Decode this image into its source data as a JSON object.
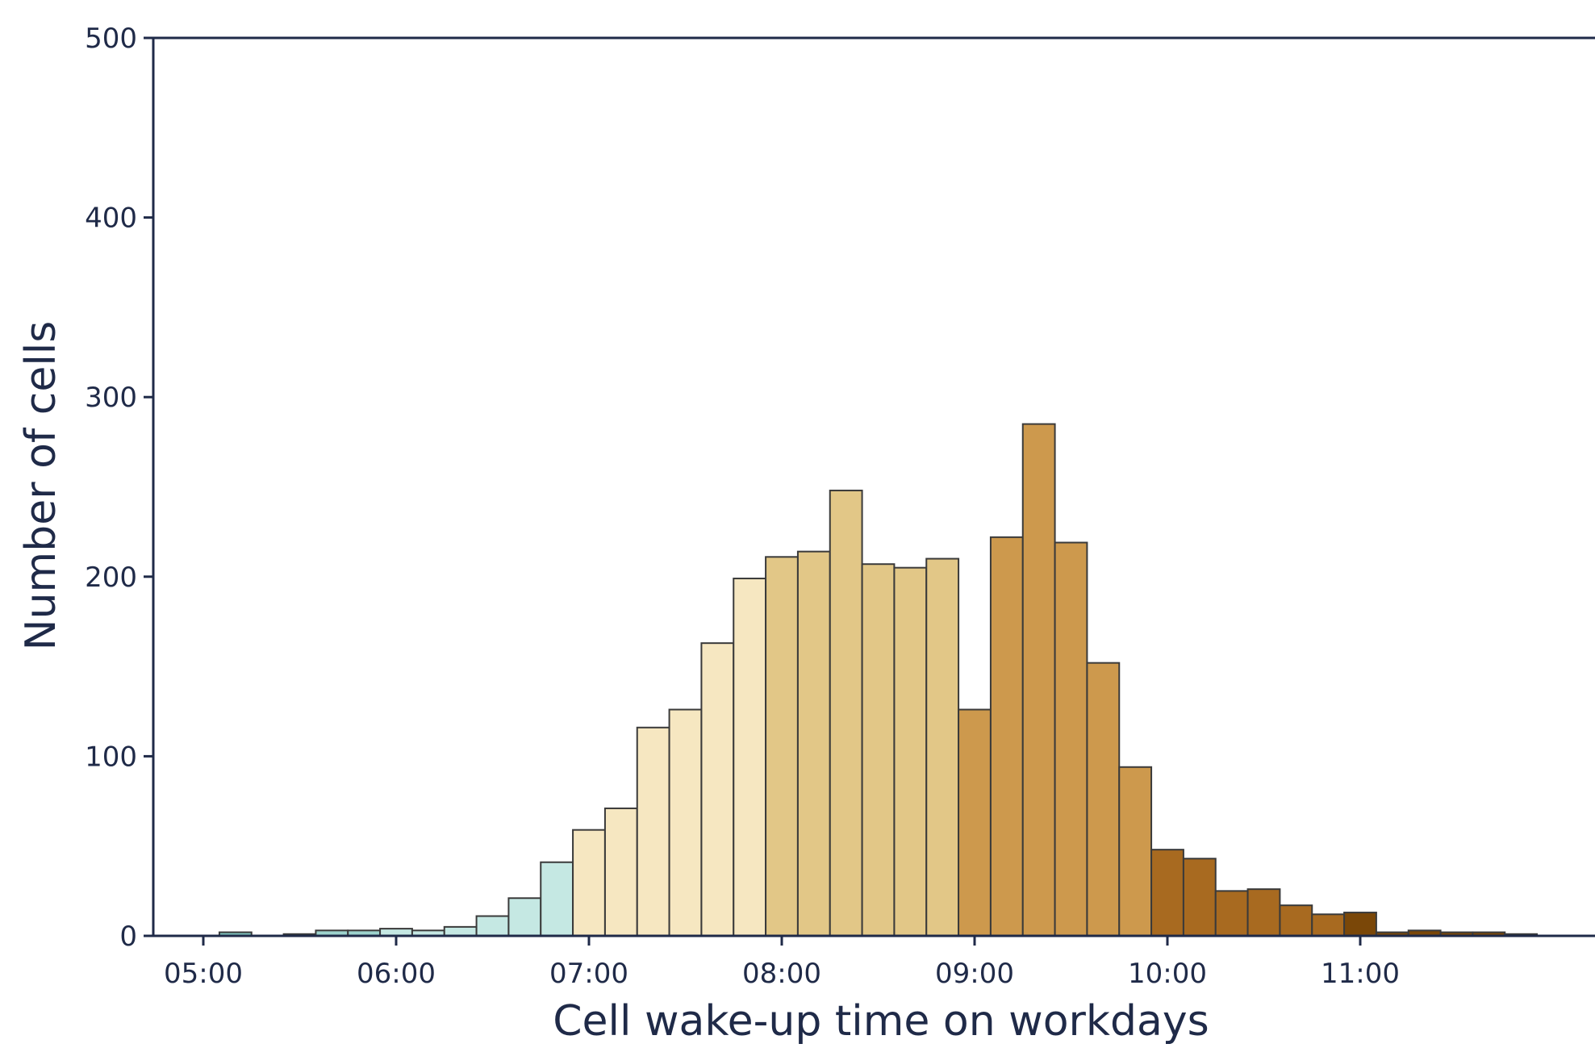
{
  "chart_data": {
    "type": "bar",
    "xlabel": "Cell wake-up time on workdays",
    "ylabel": "Number of cells",
    "ylim": [
      0,
      500
    ],
    "yticks": [
      "0",
      "100",
      "200",
      "300",
      "400",
      "500"
    ],
    "xticks": [
      "05:00",
      "06:00",
      "07:00",
      "08:00",
      "09:00",
      "10:00",
      "11:00"
    ],
    "bin_width_minutes": 10,
    "grid": false,
    "legend": "none",
    "bins": [
      {
        "start": "05:05",
        "value": 2,
        "color": "#7fc4bd"
      },
      {
        "start": "05:15",
        "value": 0,
        "color": "#7fc4bd"
      },
      {
        "start": "05:25",
        "value": 1,
        "color": "#7fc4bd"
      },
      {
        "start": "05:35",
        "value": 3,
        "color": "#9dd3cd"
      },
      {
        "start": "05:45",
        "value": 3,
        "color": "#9dd3cd"
      },
      {
        "start": "05:55",
        "value": 4,
        "color": "#c5e8e3"
      },
      {
        "start": "06:05",
        "value": 3,
        "color": "#c5e8e3"
      },
      {
        "start": "06:15",
        "value": 5,
        "color": "#c5e8e3"
      },
      {
        "start": "06:25",
        "value": 11,
        "color": "#c5e8e3"
      },
      {
        "start": "06:35",
        "value": 21,
        "color": "#c5e8e3"
      },
      {
        "start": "06:45",
        "value": 41,
        "color": "#c5e8e3"
      },
      {
        "start": "06:55",
        "value": 59,
        "color": "#f6e7c1"
      },
      {
        "start": "07:05",
        "value": 71,
        "color": "#f6e7c1"
      },
      {
        "start": "07:15",
        "value": 116,
        "color": "#f6e7c1"
      },
      {
        "start": "07:25",
        "value": 126,
        "color": "#f6e7c1"
      },
      {
        "start": "07:35",
        "value": 163,
        "color": "#f6e7c1"
      },
      {
        "start": "07:45",
        "value": 199,
        "color": "#f6e7c1"
      },
      {
        "start": "07:55",
        "value": 211,
        "color": "#e2c787"
      },
      {
        "start": "08:05",
        "value": 214,
        "color": "#e2c787"
      },
      {
        "start": "08:15",
        "value": 248,
        "color": "#e2c787"
      },
      {
        "start": "08:25",
        "value": 207,
        "color": "#e2c787"
      },
      {
        "start": "08:35",
        "value": 205,
        "color": "#e2c787"
      },
      {
        "start": "08:45",
        "value": 210,
        "color": "#e2c787"
      },
      {
        "start": "08:55",
        "value": 126,
        "color": "#cd994d"
      },
      {
        "start": "09:05",
        "value": 222,
        "color": "#cd994d"
      },
      {
        "start": "09:15",
        "value": 285,
        "color": "#cd994d"
      },
      {
        "start": "09:25",
        "value": 219,
        "color": "#cd994d"
      },
      {
        "start": "09:35",
        "value": 152,
        "color": "#cd994d"
      },
      {
        "start": "09:45",
        "value": 94,
        "color": "#cd994d"
      },
      {
        "start": "09:55",
        "value": 48,
        "color": "#a86a20"
      },
      {
        "start": "10:05",
        "value": 43,
        "color": "#a86a20"
      },
      {
        "start": "10:15",
        "value": 25,
        "color": "#a86a20"
      },
      {
        "start": "10:25",
        "value": 26,
        "color": "#a86a20"
      },
      {
        "start": "10:35",
        "value": 17,
        "color": "#a86a20"
      },
      {
        "start": "10:45",
        "value": 12,
        "color": "#a86a20"
      },
      {
        "start": "10:55",
        "value": 13,
        "color": "#7a4708"
      },
      {
        "start": "11:05",
        "value": 2,
        "color": "#7a4708"
      },
      {
        "start": "11:15",
        "value": 3,
        "color": "#7a4708"
      },
      {
        "start": "11:25",
        "value": 2,
        "color": "#7a4708"
      },
      {
        "start": "11:35",
        "value": 2,
        "color": "#7a4708"
      },
      {
        "start": "11:45",
        "value": 1,
        "color": "#7a4708"
      }
    ],
    "colors": {
      "axis": "#1f2a48",
      "bar_edge": "#3a3a3a"
    }
  }
}
